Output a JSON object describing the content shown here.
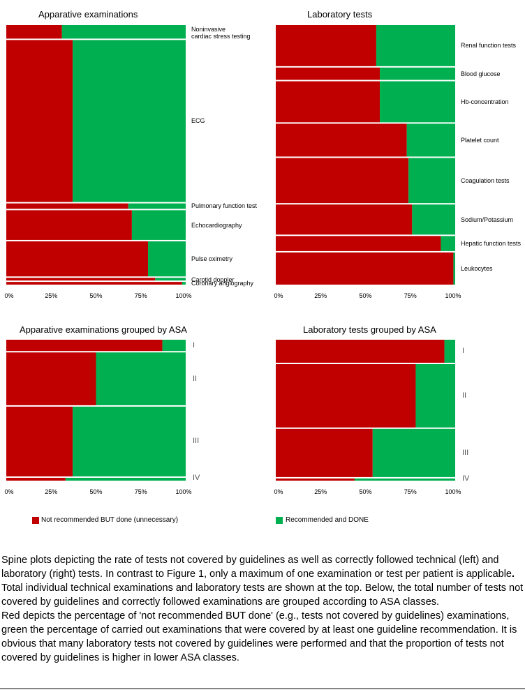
{
  "colors": {
    "not_recommended": "#c00000",
    "recommended": "#00b050"
  },
  "legend": {
    "not_recommended_label": "Not recommended BUT done (unnecessary)",
    "recommended_label": "Recommended and DONE"
  },
  "ticks": [
    "0%",
    "25%",
    "50%",
    "75%",
    "100%"
  ],
  "chart_data": [
    {
      "type": "spine",
      "title": "Apparative examinations",
      "xlim": [
        0,
        100
      ],
      "series": [
        {
          "name": "Not recommended BUT done (unnecessary)",
          "color": "#c00000"
        },
        {
          "name": "Recommended and DONE",
          "color": "#00b050"
        }
      ],
      "categories": [
        "Noninvasive cardiac stress testing",
        "ECG",
        "Pulmonary function test",
        "Echocardiography",
        "Pulse oximetry",
        "Carotid doppler",
        "Coronary angiography"
      ],
      "category_labels": [
        [
          "Noninvasive",
          "cardiac stress testing"
        ],
        [
          "ECG"
        ],
        [
          "Pulmonary function test"
        ],
        [
          "Echocardiography"
        ],
        [
          "Pulse oximetry"
        ],
        [
          "Carotid doppler"
        ],
        [
          "Coronary angiography"
        ]
      ],
      "counts": [
        5,
        60,
        2,
        11,
        13,
        1,
        1
      ],
      "not_recommended_pct": [
        31,
        37,
        68,
        70,
        79,
        83,
        98
      ]
    },
    {
      "type": "spine",
      "title": "Laboratory tests",
      "xlim": [
        0,
        100
      ],
      "series": [
        {
          "name": "Not recommended BUT done (unnecessary)",
          "color": "#c00000"
        },
        {
          "name": "Recommended and DONE",
          "color": "#00b050"
        }
      ],
      "categories": [
        "Renal function tests",
        "Blood glucose",
        "Hb-concentration",
        "Platelet count",
        "Coagulation tests",
        "Sodium/Potassium",
        "Hepatic function tests",
        "Leukocytes"
      ],
      "category_labels": [
        [
          "Renal function tests"
        ],
        [
          "Blood glucose"
        ],
        [
          "Hb-concentration"
        ],
        [
          "Platelet count"
        ],
        [
          "Coagulation tests"
        ],
        [
          "Sodium/Potassium"
        ],
        [
          "Hepatic function tests"
        ],
        [
          "Leukocytes"
        ]
      ],
      "counts": [
        60,
        18,
        60,
        48,
        66,
        44,
        22,
        47
      ],
      "not_recommended_pct": [
        56,
        58,
        58,
        73,
        74,
        76,
        92,
        99
      ]
    },
    {
      "type": "spine",
      "title": "Apparative examinations grouped by ASA",
      "xlim": [
        0,
        100
      ],
      "series": [
        {
          "name": "Not recommended BUT done (unnecessary)",
          "color": "#c00000"
        },
        {
          "name": "Recommended and DONE",
          "color": "#00b050"
        }
      ],
      "categories": [
        "I",
        "II",
        "III",
        "IV"
      ],
      "category_labels": [
        [
          "I"
        ],
        [
          "II"
        ],
        [
          "III"
        ],
        [
          "IV"
        ]
      ],
      "counts": [
        12,
        56,
        74,
        3
      ],
      "not_recommended_pct": [
        87,
        50,
        37,
        33
      ]
    },
    {
      "type": "spine",
      "title": "Laboratory tests grouped by ASA",
      "xlim": [
        0,
        100
      ],
      "series": [
        {
          "name": "Not recommended BUT done (unnecessary)",
          "color": "#c00000"
        },
        {
          "name": "Recommended and DONE",
          "color": "#00b050"
        }
      ],
      "categories": [
        "I",
        "II",
        "III",
        "IV"
      ],
      "category_labels": [
        [
          "I"
        ],
        [
          "II"
        ],
        [
          "III"
        ],
        [
          "IV"
        ]
      ],
      "counts": [
        32,
        88,
        67,
        3
      ],
      "not_recommended_pct": [
        94,
        78,
        54,
        44
      ]
    }
  ],
  "caption": {
    "para1_parts": [
      "Spine plots depicting the rate of tests not covered by guidelines as well as correctly followed technical (left) and laboratory (right) tests. In contrast to Figure 1, only a maximum of one examination or test per patient is applicable",
      ".",
      " Total individual technical examinations and laboratory tests are shown at the top. Below, the total number of tests not covered by guidelines and correctly followed examinations are grouped according to ASA classes."
    ],
    "para2": "Red depicts the percentage of 'not recommended BUT done' (e.g., tests not covered by guidelines) examinations, green the percentage of carried out examinations that were covered by at least one guideline recommendation. It is obvious that many laboratory tests not covered by guidelines were performed and that the proportion of tests not covered by guidelines is higher in lower ASA classes."
  }
}
